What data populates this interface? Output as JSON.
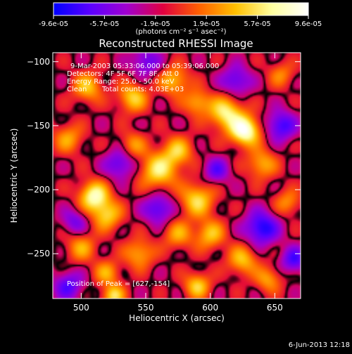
{
  "footer_date": "6-Jun-2013 12:18",
  "chart_data": {
    "type": "heatmap",
    "title": "Reconstructed RHESSI Image",
    "xlabel": "Heliocentric X (arcsec)",
    "ylabel": "Heliocentric Y (arcsec)",
    "xlim": [
      478,
      670
    ],
    "ylim": [
      -285,
      -93
    ],
    "xticks": [
      500,
      550,
      600,
      650
    ],
    "yticks": [
      -100,
      -150,
      -200,
      -250
    ],
    "colorbar": {
      "min": -9.6e-05,
      "max": 9.6e-05,
      "tick_labels": [
        "-9.6e-05",
        "-5.7e-05",
        "-1.9e-05",
        "1.9e-05",
        "5.7e-05",
        "9.6e-05"
      ],
      "unit_label": "(photons cm⁻² s⁻¹ asec⁻²)",
      "colors": [
        "#0000ff",
        "#5a00ff",
        "#a000d0",
        "#e00040",
        "#ff6000",
        "#ffc000",
        "#ffffa0",
        "#ffffff"
      ]
    },
    "annotations": {
      "time_range": "9-Mar-2003 05:33:06.000 to 05:39:06.000",
      "detectors": "Detectors: 4F 5F 6F 7F 8F, Att 0",
      "energy": "Energy Range: 25.0 - 50.0 keV",
      "clean": "Clean",
      "counts": "Total counts: 4.03E+03",
      "peak": "Position of Peak = [627,-154]"
    },
    "peak": {
      "x": 627,
      "y": -154
    },
    "sources": [
      {
        "x": 627,
        "y": -154,
        "amp": 1.0,
        "sigma": 8
      },
      {
        "x": 612,
        "y": -140,
        "amp": 0.75,
        "sigma": 9
      },
      {
        "x": 510,
        "y": -205,
        "amp": 0.85,
        "sigma": 8
      },
      {
        "x": 520,
        "y": -220,
        "amp": 0.6,
        "sigma": 8
      },
      {
        "x": 560,
        "y": -185,
        "amp": 0.7,
        "sigma": 10
      },
      {
        "x": 575,
        "y": -170,
        "amp": 0.55,
        "sigma": 8
      },
      {
        "x": 590,
        "y": -208,
        "amp": 0.65,
        "sigma": 9
      },
      {
        "x": 600,
        "y": -235,
        "amp": 0.55,
        "sigma": 8
      },
      {
        "x": 575,
        "y": -235,
        "amp": 0.45,
        "sigma": 8
      },
      {
        "x": 545,
        "y": -250,
        "amp": 0.5,
        "sigma": 8
      },
      {
        "x": 520,
        "y": -265,
        "amp": 0.45,
        "sigma": 7
      },
      {
        "x": 505,
        "y": -120,
        "amp": 0.55,
        "sigma": 8
      },
      {
        "x": 540,
        "y": -128,
        "amp": 0.6,
        "sigma": 8
      },
      {
        "x": 572,
        "y": -115,
        "amp": 0.55,
        "sigma": 8
      },
      {
        "x": 590,
        "y": -132,
        "amp": 0.5,
        "sigma": 7
      },
      {
        "x": 640,
        "y": -180,
        "amp": 0.5,
        "sigma": 8
      },
      {
        "x": 660,
        "y": -210,
        "amp": 0.4,
        "sigma": 7
      },
      {
        "x": 625,
        "y": -255,
        "amp": 0.55,
        "sigma": 8
      },
      {
        "x": 645,
        "y": -270,
        "amp": 0.45,
        "sigma": 7
      },
      {
        "x": 590,
        "y": -275,
        "amp": 0.6,
        "sigma": 7
      },
      {
        "x": 525,
        "y": -283,
        "amp": 0.65,
        "sigma": 6
      },
      {
        "x": 490,
        "y": -160,
        "amp": 0.45,
        "sigma": 8
      },
      {
        "x": 500,
        "y": -245,
        "amp": 0.45,
        "sigma": 8
      },
      {
        "x": 540,
        "y": -165,
        "amp": 0.4,
        "sigma": 7
      },
      {
        "x": 655,
        "y": -110,
        "amp": 0.35,
        "sigma": 7
      },
      {
        "x": 640,
        "y": -230,
        "amp": -0.7,
        "sigma": 9
      },
      {
        "x": 655,
        "y": -150,
        "amp": -0.6,
        "sigma": 8
      },
      {
        "x": 560,
        "y": -215,
        "amp": -0.55,
        "sigma": 8
      },
      {
        "x": 530,
        "y": -180,
        "amp": -0.5,
        "sigma": 8
      },
      {
        "x": 490,
        "y": -275,
        "amp": -0.5,
        "sigma": 8
      },
      {
        "x": 550,
        "y": -100,
        "amp": -0.45,
        "sigma": 8
      },
      {
        "x": 620,
        "y": -115,
        "amp": -0.5,
        "sigma": 8
      },
      {
        "x": 605,
        "y": -185,
        "amp": -0.45,
        "sigma": 7
      },
      {
        "x": 495,
        "y": -225,
        "amp": -0.4,
        "sigma": 7
      },
      {
        "x": 665,
        "y": -255,
        "amp": -0.55,
        "sigma": 7
      }
    ]
  }
}
